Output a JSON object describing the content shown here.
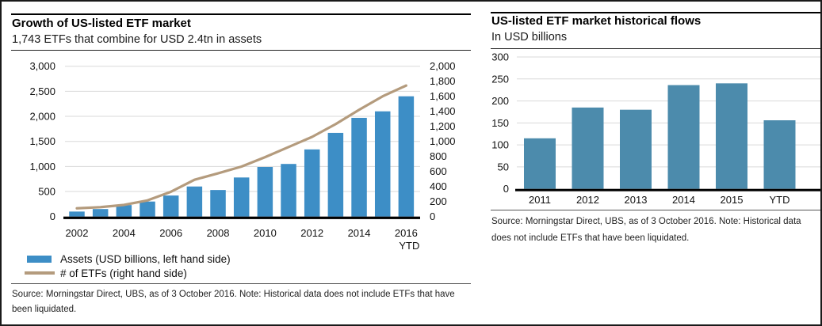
{
  "chart_data": [
    {
      "id": "etf_growth",
      "type": "bar+line",
      "title": "Growth of US-listed ETF market",
      "subtitle": "1,743 ETFs that combine for USD 2.4tn in assets",
      "categories": [
        "2002",
        "2003",
        "2004",
        "2005",
        "2006",
        "2007",
        "2008",
        "2009",
        "2010",
        "2011",
        "2012",
        "2013",
        "2014",
        "2015",
        "2016 YTD"
      ],
      "series": [
        {
          "name": "Assets (USD billions, left hand side)",
          "type": "bar",
          "axis": "left",
          "values": [
            100,
            150,
            230,
            300,
            420,
            600,
            530,
            780,
            990,
            1050,
            1340,
            1670,
            1970,
            2100,
            2400
          ]
        },
        {
          "name": "# of ETFs (right hand side)",
          "type": "line",
          "axis": "right",
          "values": [
            110,
            125,
            155,
            215,
            330,
            490,
            575,
            665,
            790,
            925,
            1060,
            1230,
            1420,
            1600,
            1743
          ]
        }
      ],
      "left_axis": {
        "min": 0,
        "max": 3000,
        "tick_values": [
          0,
          500,
          1000,
          1500,
          2000,
          2500,
          3000
        ],
        "tick_labels": [
          "0",
          "500",
          "1,000",
          "1,500",
          "2,000",
          "2,500",
          "3,000"
        ]
      },
      "right_axis": {
        "min": 0,
        "max": 2000,
        "tick_values": [
          0,
          200,
          400,
          600,
          800,
          1000,
          1200,
          1400,
          1600,
          1800,
          2000
        ],
        "tick_labels": [
          "0",
          "200",
          "400",
          "600",
          "800",
          "1,000",
          "1,200",
          "1,400",
          "1,600",
          "1,800",
          "2,000"
        ]
      },
      "x_ticks": {
        "indices": [
          0,
          2,
          4,
          6,
          8,
          10,
          12,
          14
        ],
        "labels": [
          "2002",
          "2004",
          "2006",
          "2008",
          "2010",
          "2012",
          "2014",
          "2016"
        ],
        "sublabel": "YTD"
      },
      "grid": true,
      "legend_position": "bottom-left"
    },
    {
      "id": "etf_flows",
      "type": "bar",
      "title": "US-listed ETF market historical flows",
      "subtitle": "In USD billions",
      "categories": [
        "2011",
        "2012",
        "2013",
        "2014",
        "2015",
        "YTD"
      ],
      "values": [
        115,
        185,
        180,
        236,
        240,
        156
      ],
      "y_axis": {
        "min": 0,
        "max": 300,
        "tick_values": [
          0,
          50,
          100,
          150,
          200,
          250,
          300
        ],
        "tick_labels": [
          "0",
          "50",
          "100",
          "150",
          "200",
          "250",
          "300"
        ]
      },
      "grid": true,
      "legend_position": "none"
    }
  ],
  "panels": [
    {
      "source_note": "Source: Morningstar Direct, UBS, as of 3 October 2016. Note: Historical data does not include ETFs that have been liquidated."
    },
    {
      "source_note": "Source: Morningstar Direct, UBS, as of 3 October 2016. Note: Historical data does not include ETFs that have been liquidated."
    }
  ],
  "colors": {
    "left_bar": "#3D8EC6",
    "right_bar": "#4C8BAC",
    "line": "#B49B7D",
    "grid": "#D9D9D9",
    "baseline": "#000000",
    "tick_text": "#111111"
  }
}
